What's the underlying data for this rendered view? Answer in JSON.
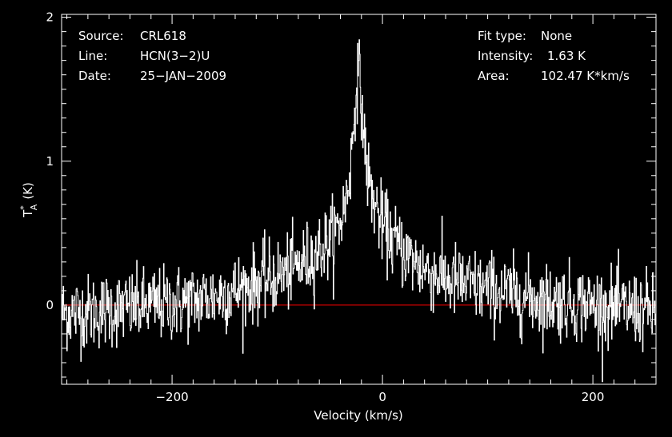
{
  "colors": {
    "background": "#000000",
    "foreground": "#ffffff",
    "baseline": "#ff0000"
  },
  "info_left": {
    "source_label": "Source:",
    "source_value": "CRL618",
    "line_label": "Line:",
    "line_value": "HCN(3−2)U",
    "date_label": "Date:",
    "date_value": "25−JAN−2009"
  },
  "info_right": {
    "fit_label": "Fit type:",
    "fit_value": "None",
    "intensity_label": "Intensity:",
    "intensity_value": "1.63 K",
    "area_label": "Area:",
    "area_value": "102.47 K*km/s"
  },
  "chart_data": {
    "type": "line",
    "xlabel": "Velocity (km/s)",
    "ylabel_base": "T",
    "ylabel_sup": "*",
    "ylabel_sub": "A",
    "ylabel_unit": "(K)",
    "xlim": [
      -305,
      260
    ],
    "ylim": [
      -0.55,
      2.02
    ],
    "x_ticks": [
      {
        "value": -200,
        "label": "−200"
      },
      {
        "value": 0,
        "label": "0"
      },
      {
        "value": 200,
        "label": "200"
      }
    ],
    "y_ticks": [
      {
        "value": 0,
        "label": "0"
      },
      {
        "value": 1,
        "label": "1"
      },
      {
        "value": 2,
        "label": "2"
      }
    ],
    "x_minor_step": 20,
    "y_minor_step": 0.1,
    "baseline_value": 0,
    "series": [
      {
        "x": [
          -300,
          -280,
          -260,
          -240,
          -220,
          -200,
          -180,
          -160,
          -140,
          -120,
          -100,
          -80,
          -70,
          -60,
          -50,
          -45,
          -40,
          -35,
          -30,
          -28,
          -26,
          -24,
          -22,
          -20,
          -18,
          -16,
          -14,
          -12,
          -10,
          -5,
          0,
          10,
          20,
          30,
          40,
          60,
          80,
          100,
          120,
          140,
          160,
          180,
          200,
          220,
          240,
          260
        ],
        "y": [
          -0.05,
          -0.05,
          -0.03,
          -0.02,
          0.0,
          0.01,
          0.03,
          0.06,
          0.1,
          0.15,
          0.2,
          0.27,
          0.32,
          0.38,
          0.45,
          0.5,
          0.58,
          0.72,
          1.0,
          1.2,
          1.45,
          1.62,
          1.55,
          1.4,
          1.2,
          1.02,
          0.9,
          0.82,
          0.75,
          0.65,
          0.55,
          0.45,
          0.37,
          0.3,
          0.25,
          0.18,
          0.14,
          0.11,
          0.08,
          0.05,
          0.03,
          0.02,
          0.0,
          -0.02,
          -0.03,
          -0.04
        ]
      }
    ],
    "noise_rms_k": 0.13,
    "grid": false
  }
}
